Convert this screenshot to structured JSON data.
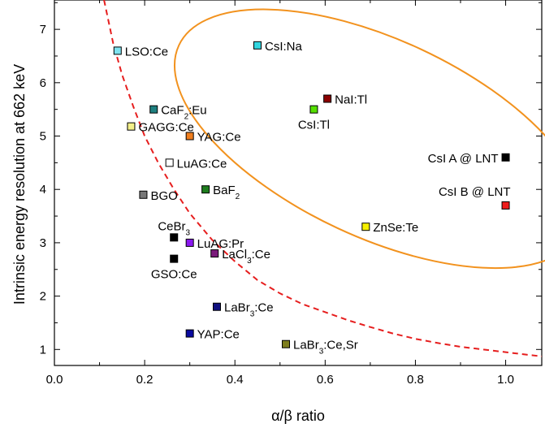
{
  "chart_data": {
    "type": "scatter",
    "title": "",
    "xlabel": "α/β ratio",
    "ylabel": "Intrinsic energy resolution at 662 keV",
    "xlim": [
      0.0,
      1.08
    ],
    "ylim": [
      0.7,
      7.55
    ],
    "xticks": [
      "0.0",
      "0.2",
      "0.4",
      "0.6",
      "0.8",
      "1.0"
    ],
    "yticks": [
      "1",
      "2",
      "3",
      "4",
      "5",
      "6",
      "7"
    ],
    "grid": false,
    "legend": "none",
    "points": [
      {
        "label": "LSO:Ce",
        "label_html": "LSO:Ce",
        "x": 0.14,
        "y": 6.6,
        "color": "#7fe3f0",
        "label_pos": "right"
      },
      {
        "label": "CsI:Na",
        "label_html": "CsI:Na",
        "x": 0.45,
        "y": 6.7,
        "color": "#33d6e0",
        "label_pos": "right"
      },
      {
        "label": "NaI:Tl",
        "label_html": "NaI:Tl",
        "x": 0.605,
        "y": 5.7,
        "color": "#8b0000",
        "label_pos": "right"
      },
      {
        "label": "CsI:Tl",
        "label_html": "CsI:Tl",
        "x": 0.575,
        "y": 5.5,
        "color": "#55e000",
        "label_pos": "below"
      },
      {
        "label": "CaF2:Eu",
        "label_html": "CaF<tspan baseline-shift=\"sub\" font-size=\"10\">2</tspan>:Eu",
        "x": 0.22,
        "y": 5.5,
        "color": "#1e8080",
        "label_pos": "right"
      },
      {
        "label": "GAGG:Ce",
        "label_html": "GAGG:Ce",
        "x": 0.17,
        "y": 5.18,
        "color": "#f4f08a",
        "label_pos": "right"
      },
      {
        "label": "YAG:Ce",
        "label_html": "YAG:Ce",
        "x": 0.3,
        "y": 5.0,
        "color": "#f07e1e",
        "label_pos": "right"
      },
      {
        "label": "LuAG:Ce",
        "label_html": "LuAG:Ce",
        "x": 0.255,
        "y": 4.5,
        "color": "#ffffff",
        "label_pos": "right"
      },
      {
        "label": "CsI A @ LNT",
        "label_html": "CsI A @ LNT",
        "x": 1.0,
        "y": 4.6,
        "color": "#000000",
        "label_pos": "left"
      },
      {
        "label": "BaF2",
        "label_html": "BaF<tspan baseline-shift=\"sub\" font-size=\"10\">2</tspan>",
        "x": 0.335,
        "y": 4.0,
        "color": "#1e7d1e",
        "label_pos": "right"
      },
      {
        "label": "BGO",
        "label_html": "BGO",
        "x": 0.197,
        "y": 3.9,
        "color": "#777777",
        "label_pos": "right"
      },
      {
        "label": "CsI B @ LNT",
        "label_html": "CsI B @ LNT",
        "x": 1.0,
        "y": 3.7,
        "color": "#ee1c1c",
        "label_pos": "left-above"
      },
      {
        "label": "ZnSe:Te",
        "label_html": "ZnSe:Te",
        "x": 0.69,
        "y": 3.3,
        "color": "#f5f000",
        "label_pos": "right"
      },
      {
        "label": "CeBr3",
        "label_html": "CeBr<tspan baseline-shift=\"sub\" font-size=\"10\">3</tspan>",
        "x": 0.265,
        "y": 3.1,
        "color": "#000000",
        "label_pos": "above"
      },
      {
        "label": "LuAG:Pr",
        "label_html": "LuAG:Pr",
        "x": 0.3,
        "y": 3.0,
        "color": "#8a18f0",
        "label_pos": "right"
      },
      {
        "label": "LaCl3:Ce",
        "label_html": "LaCl<tspan baseline-shift=\"sub\" font-size=\"10\">3</tspan>:Ce",
        "x": 0.355,
        "y": 2.8,
        "color": "#7a1a7a",
        "label_pos": "right"
      },
      {
        "label": "GSO:Ce",
        "label_html": "GSO:Ce",
        "x": 0.265,
        "y": 2.7,
        "color": "#000000",
        "label_pos": "below"
      },
      {
        "label": "LaBr3:Ce",
        "label_html": "LaBr<tspan baseline-shift=\"sub\" font-size=\"10\">3</tspan>:Ce",
        "x": 0.36,
        "y": 1.8,
        "color": "#101080",
        "label_pos": "right"
      },
      {
        "label": "YAP:Ce",
        "label_html": "YAP:Ce",
        "x": 0.3,
        "y": 1.3,
        "color": "#0a0aa0",
        "label_pos": "right"
      },
      {
        "label": "LaBr3:Ce,Sr",
        "label_html": "LaBr<tspan baseline-shift=\"sub\" font-size=\"10\">3</tspan>:Ce,Sr",
        "x": 0.513,
        "y": 1.1,
        "color": "#7d7d1e",
        "label_pos": "right"
      }
    ],
    "annotations": {
      "dashed_curve": {
        "color": "#e61e1e",
        "points": [
          [
            0.11,
            7.55
          ],
          [
            0.13,
            6.75
          ],
          [
            0.15,
            6.15
          ],
          [
            0.175,
            5.55
          ],
          [
            0.2,
            5.0
          ],
          [
            0.23,
            4.5
          ],
          [
            0.265,
            4.0
          ],
          [
            0.3,
            3.55
          ],
          [
            0.35,
            3.05
          ],
          [
            0.4,
            2.65
          ],
          [
            0.45,
            2.3
          ],
          [
            0.5,
            2.05
          ],
          [
            0.55,
            1.85
          ],
          [
            0.6,
            1.7
          ],
          [
            0.65,
            1.55
          ],
          [
            0.7,
            1.42
          ],
          [
            0.75,
            1.3
          ],
          [
            0.8,
            1.2
          ],
          [
            0.85,
            1.12
          ],
          [
            0.9,
            1.05
          ],
          [
            0.95,
            1.0
          ],
          [
            1.0,
            0.95
          ],
          [
            1.05,
            0.9
          ],
          [
            1.08,
            0.87
          ]
        ]
      },
      "ellipse": {
        "color": "#f2921e",
        "center": [
          0.72,
          4.95
        ],
        "semi_axes": [
          0.49,
          1.85
        ],
        "rotation_deg": 25
      }
    }
  }
}
